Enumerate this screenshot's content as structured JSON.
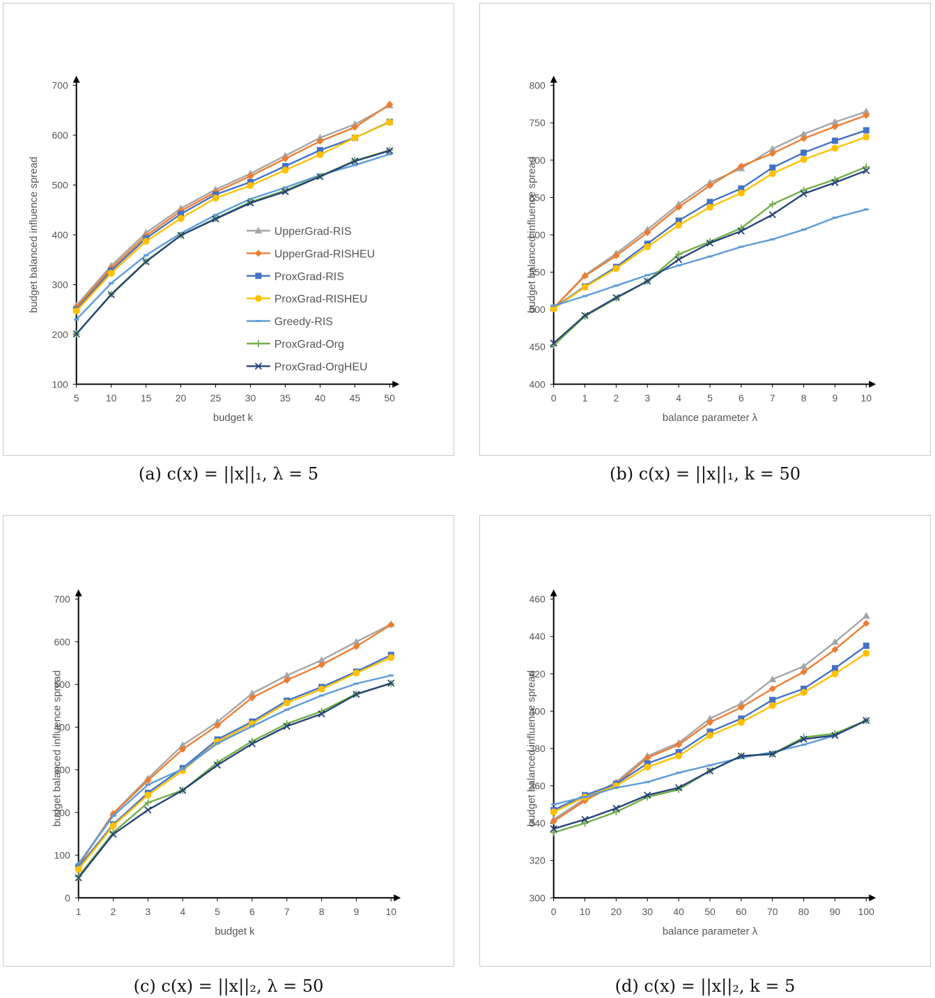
{
  "colors": {
    "UpperGrad-RIS": "#a5a5a5",
    "UpperGrad-RISHEU": "#ed7d31",
    "ProxGrad-RIS": "#4472c4",
    "ProxGrad-RISHEU": "#ffc000",
    "Greedy-RIS": "#5b9bd5",
    "ProxGrad-Org": "#70ad47",
    "ProxGrad-OrgHEU": "#264478"
  },
  "chart_data": [
    {
      "id": "a",
      "type": "line",
      "caption": "(a) c(x) = ||x||₁, λ = 5",
      "xlabel": "budget k",
      "ylabel": "budget balanced influence spread",
      "categories": [
        "5",
        "10",
        "15",
        "20",
        "25",
        "30",
        "35",
        "40",
        "45",
        "50"
      ],
      "ylim": [
        100,
        700
      ],
      "yticks": [
        100,
        200,
        300,
        400,
        500,
        600,
        700
      ],
      "legend": "center",
      "series": [
        {
          "name": "UpperGrad-RIS",
          "marker": "triangle",
          "values": [
            258,
            338,
            404,
            453,
            491,
            523,
            559,
            595,
            622,
            660
          ]
        },
        {
          "name": "UpperGrad-RISHEU",
          "marker": "diamond",
          "values": [
            255,
            333,
            398,
            448,
            486,
            518,
            553,
            588,
            616,
            662
          ]
        },
        {
          "name": "ProxGrad-RIS",
          "marker": "square",
          "values": [
            250,
            328,
            393,
            442,
            481,
            506,
            538,
            570,
            595,
            627
          ]
        },
        {
          "name": "ProxGrad-RISHEU",
          "marker": "circle",
          "values": [
            247,
            323,
            387,
            433,
            474,
            499,
            530,
            561,
            595,
            626
          ]
        },
        {
          "name": "Greedy-RIS",
          "marker": "dash",
          "values": [
            230,
            303,
            359,
            403,
            440,
            472,
            495,
            520,
            540,
            562
          ]
        },
        {
          "name": "ProxGrad-Org",
          "marker": "plus",
          "values": [
            201,
            281,
            347,
            399,
            433,
            466,
            489,
            518,
            549,
            570
          ]
        },
        {
          "name": "ProxGrad-OrgHEU",
          "marker": "x",
          "values": [
            201,
            280,
            346,
            399,
            432,
            464,
            487,
            517,
            548,
            569
          ]
        }
      ]
    },
    {
      "id": "b",
      "type": "line",
      "caption": "(b) c(x) = ||x||₁, k = 50",
      "xlabel": "balance parameter λ",
      "ylabel": "budget balanced influence spread",
      "categories": [
        "0",
        "1",
        "2",
        "3",
        "4",
        "5",
        "6",
        "7",
        "8",
        "9",
        "10"
      ],
      "ylim": [
        400,
        800
      ],
      "yticks": [
        400,
        450,
        500,
        550,
        600,
        650,
        700,
        750,
        800
      ],
      "legend": "none",
      "series": [
        {
          "name": "UpperGrad-RIS",
          "marker": "triangle",
          "values": [
            502,
            546,
            575,
            607,
            641,
            670,
            689,
            715,
            735,
            751,
            765
          ]
        },
        {
          "name": "UpperGrad-RISHEU",
          "marker": "diamond",
          "values": [
            502,
            545,
            572,
            603,
            637,
            666,
            692,
            709,
            729,
            745,
            760
          ]
        },
        {
          "name": "ProxGrad-RIS",
          "marker": "square",
          "values": [
            502,
            531,
            557,
            588,
            619,
            644,
            662,
            690,
            710,
            726,
            740
          ]
        },
        {
          "name": "ProxGrad-RISHEU",
          "marker": "circle",
          "values": [
            501,
            530,
            555,
            584,
            613,
            637,
            656,
            682,
            701,
            716,
            731
          ]
        },
        {
          "name": "Greedy-RIS",
          "marker": "dash",
          "values": [
            505,
            518,
            532,
            546,
            559,
            571,
            584,
            594,
            607,
            623,
            634
          ]
        },
        {
          "name": "ProxGrad-Org",
          "marker": "plus",
          "values": [
            452,
            491,
            515,
            538,
            574,
            591,
            609,
            641,
            660,
            674,
            691
          ]
        },
        {
          "name": "ProxGrad-OrgHEU",
          "marker": "x",
          "values": [
            455,
            492,
            516,
            538,
            567,
            589,
            605,
            627,
            655,
            670,
            686
          ]
        }
      ]
    },
    {
      "id": "c",
      "type": "line",
      "caption": "(c) c(x) = ||x||₂, λ = 50",
      "xlabel": "budget k",
      "ylabel": "budget balanced influence spread",
      "categories": [
        "1",
        "2",
        "3",
        "4",
        "5",
        "6",
        "7",
        "8",
        "9",
        "10"
      ],
      "ylim": [
        0,
        700
      ],
      "yticks": [
        0,
        100,
        200,
        300,
        400,
        500,
        600,
        700
      ],
      "legend": "none",
      "series": [
        {
          "name": "UpperGrad-RIS",
          "marker": "triangle",
          "values": [
            77,
            198,
            280,
            358,
            412,
            479,
            521,
            557,
            600,
            641
          ]
        },
        {
          "name": "UpperGrad-RISHEU",
          "marker": "diamond",
          "values": [
            75,
            197,
            275,
            348,
            404,
            469,
            510,
            546,
            589,
            640
          ]
        },
        {
          "name": "ProxGrad-RIS",
          "marker": "square",
          "values": [
            72,
            172,
            246,
            304,
            371,
            413,
            462,
            494,
            530,
            569
          ]
        },
        {
          "name": "ProxGrad-RISHEU",
          "marker": "circle",
          "values": [
            67,
            169,
            241,
            298,
            366,
            408,
            457,
            489,
            527,
            563
          ]
        },
        {
          "name": "Greedy-RIS",
          "marker": "dash",
          "values": [
            80,
            192,
            265,
            302,
            362,
            402,
            441,
            474,
            502,
            521
          ]
        },
        {
          "name": "ProxGrad-Org",
          "marker": "plus",
          "values": [
            50,
            153,
            223,
            252,
            317,
            367,
            408,
            437,
            478,
            502
          ]
        },
        {
          "name": "ProxGrad-OrgHEU",
          "marker": "x",
          "values": [
            47,
            149,
            206,
            252,
            311,
            361,
            402,
            431,
            477,
            503
          ]
        }
      ]
    },
    {
      "id": "d",
      "type": "line",
      "caption": "(d) c(x) = ||x||₂, k = 5",
      "xlabel": "balance parameter λ",
      "ylabel": "budget balanced influence spread",
      "categories": [
        "0",
        "10",
        "20",
        "30",
        "40",
        "50",
        "60",
        "70",
        "80",
        "90",
        "100"
      ],
      "ylim": [
        300,
        460
      ],
      "yticks": [
        300,
        320,
        340,
        360,
        380,
        400,
        420,
        440,
        460
      ],
      "legend": "none",
      "series": [
        {
          "name": "UpperGrad-RIS",
          "marker": "triangle",
          "values": [
            342,
            353,
            362,
            376,
            383,
            396,
            404,
            417,
            424,
            437,
            451
          ]
        },
        {
          "name": "UpperGrad-RISHEU",
          "marker": "diamond",
          "values": [
            341,
            352,
            361,
            375,
            382,
            394,
            402,
            412,
            421,
            433,
            447
          ]
        },
        {
          "name": "ProxGrad-RIS",
          "marker": "square",
          "values": [
            347,
            355,
            361,
            372,
            378,
            389,
            396,
            406,
            412,
            423,
            435
          ]
        },
        {
          "name": "ProxGrad-RISHEU",
          "marker": "circle",
          "values": [
            346,
            354,
            360,
            370,
            376,
            387,
            394,
            403,
            410,
            420,
            431
          ]
        },
        {
          "name": "Greedy-RIS",
          "marker": "dash",
          "values": [
            350,
            354,
            359,
            362,
            367,
            371,
            375,
            378,
            382,
            387,
            395
          ]
        },
        {
          "name": "ProxGrad-Org",
          "marker": "plus",
          "values": [
            335,
            340,
            346,
            354,
            358,
            368,
            376,
            377,
            386,
            388,
            395
          ]
        },
        {
          "name": "ProxGrad-OrgHEU",
          "marker": "x",
          "values": [
            337,
            342,
            348,
            355,
            359,
            368,
            376,
            377,
            385,
            387,
            395
          ]
        }
      ]
    }
  ]
}
